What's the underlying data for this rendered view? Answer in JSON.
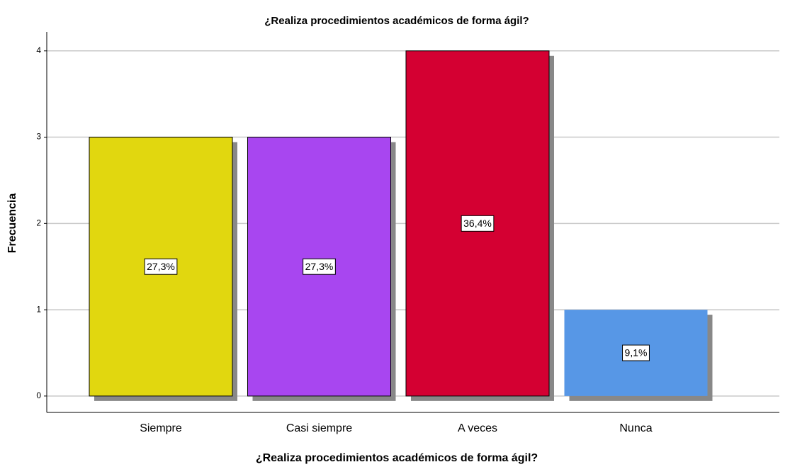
{
  "chart_data": {
    "type": "bar",
    "title": "¿Realiza procedimientos académicos de forma ágil?",
    "x_label": "¿Realiza procedimientos académicos de forma ágil?",
    "y_label": "Frecuencia",
    "categories": [
      "Siempre",
      "Casi siempre",
      "A veces",
      "Nunca"
    ],
    "values": [
      3,
      3,
      4,
      1
    ],
    "colors": [
      "#e1d70f",
      "#a846f0",
      "#d40032",
      "#5797e6"
    ],
    "percentages": {
      "values": [
        27.3,
        27.3,
        36.4,
        9.1
      ],
      "value_labels": [
        "27,3%",
        "27,3%",
        "36,4%",
        "9,1%"
      ]
    },
    "ylim": [
      -0.19,
      4.22
    ],
    "yticks": [
      0,
      1,
      2,
      3,
      4
    ],
    "grid": true
  }
}
